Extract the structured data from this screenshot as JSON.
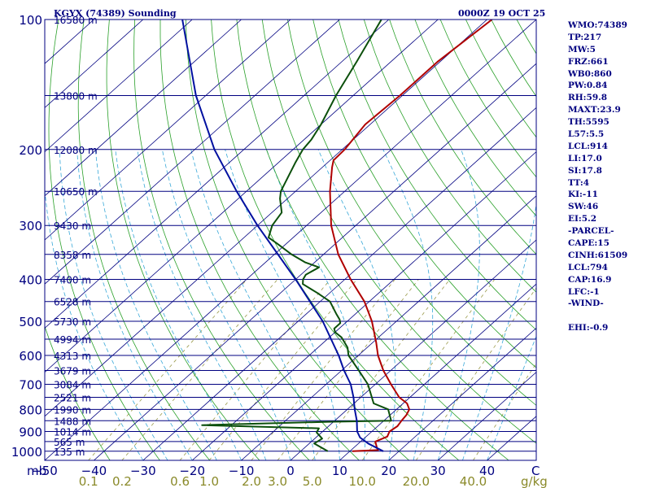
{
  "chart_data": {
    "type": "line",
    "title_left": "KGYX (74389) Sounding",
    "title_right": "0000Z 19 OCT 25",
    "y_axis_unit": "mb",
    "pressure_ticks": [
      100,
      200,
      300,
      400,
      500,
      600,
      700,
      800,
      900,
      1000
    ],
    "pressure_range": [
      100,
      1050
    ],
    "x_axis_unit": "C",
    "temperature_ticks": [
      -50,
      -40,
      -30,
      -20,
      -10,
      0,
      10,
      20,
      30,
      40
    ],
    "temperature_range_at_surface": [
      -50,
      50
    ],
    "mixing_ratio_unit": "g/kg",
    "mixing_ratio_labels": [
      "0.1",
      "0.2",
      "0.6",
      "1.0",
      "2.0",
      "3.0",
      "5.0",
      "10.0",
      "20.0",
      "40.0"
    ],
    "mixing_ratio_values": [
      0.1,
      0.2,
      0.6,
      1.0,
      2.0,
      3.0,
      5.0,
      10.0,
      20.0,
      40.0
    ],
    "height_levels": [
      {
        "p": 100,
        "label": "16580 m"
      },
      {
        "p": 150,
        "label": "13800 m"
      },
      {
        "p": 200,
        "label": "12080 m"
      },
      {
        "p": 250,
        "label": "10650 m"
      },
      {
        "p": 300,
        "label": "9430 m"
      },
      {
        "p": 350,
        "label": "8358 m"
      },
      {
        "p": 400,
        "label": "7400 m"
      },
      {
        "p": 450,
        "label": "6528 m"
      },
      {
        "p": 500,
        "label": "5730 m"
      },
      {
        "p": 550,
        "label": "4994 m"
      },
      {
        "p": 600,
        "label": "4313 m"
      },
      {
        "p": 650,
        "label": "3679 m"
      },
      {
        "p": 700,
        "label": "3084 m"
      },
      {
        "p": 750,
        "label": "2521 m"
      },
      {
        "p": 800,
        "label": "1990 m"
      },
      {
        "p": 850,
        "label": "1488 m"
      },
      {
        "p": 900,
        "label": "1014 m"
      },
      {
        "p": 950,
        "label": "565 m"
      },
      {
        "p": 1000,
        "label": "135 m"
      }
    ],
    "series": [
      {
        "name": "Temperature",
        "color": "#b00000",
        "points": [
          {
            "p": 1000,
            "t": 10.5
          },
          {
            "p": 994,
            "t": 15.5
          },
          {
            "p": 985,
            "t": 14.9
          },
          {
            "p": 950,
            "t": 13.0
          },
          {
            "p": 925,
            "t": 14.3
          },
          {
            "p": 900,
            "t": 13.6
          },
          {
            "p": 875,
            "t": 14.0
          },
          {
            "p": 850,
            "t": 13.6
          },
          {
            "p": 825,
            "t": 13.3
          },
          {
            "p": 800,
            "t": 12.6
          },
          {
            "p": 775,
            "t": 10.8
          },
          {
            "p": 750,
            "t": 7.8
          },
          {
            "p": 700,
            "t": 3.2
          },
          {
            "p": 650,
            "t": -1.5
          },
          {
            "p": 600,
            "t": -6.0
          },
          {
            "p": 560,
            "t": -9.3
          },
          {
            "p": 500,
            "t": -15.0
          },
          {
            "p": 450,
            "t": -21.0
          },
          {
            "p": 400,
            "t": -28.8
          },
          {
            "p": 350,
            "t": -37.0
          },
          {
            "p": 300,
            "t": -45.0
          },
          {
            "p": 250,
            "t": -53.0
          },
          {
            "p": 220,
            "t": -58.0
          },
          {
            "p": 212,
            "t": -59.3
          },
          {
            "p": 200,
            "t": -59.5
          },
          {
            "p": 175,
            "t": -61.0
          },
          {
            "p": 150,
            "t": -60.5
          },
          {
            "p": 125,
            "t": -60.5
          },
          {
            "p": 100,
            "t": -59.0
          }
        ]
      },
      {
        "name": "Dewpoint",
        "color": "#0b4f0b",
        "points": [
          {
            "p": 1000,
            "t": 5.5
          },
          {
            "p": 960,
            "t": 1.0
          },
          {
            "p": 935,
            "t": 1.5
          },
          {
            "p": 905,
            "t": -1.0
          },
          {
            "p": 885,
            "t": -1.5
          },
          {
            "p": 870,
            "t": -26.0
          },
          {
            "p": 855,
            "t": -1.0
          },
          {
            "p": 850,
            "t": 11.5
          },
          {
            "p": 800,
            "t": 8.3
          },
          {
            "p": 775,
            "t": 4.0
          },
          {
            "p": 700,
            "t": -1.5
          },
          {
            "p": 650,
            "t": -6.5
          },
          {
            "p": 600,
            "t": -12.0
          },
          {
            "p": 575,
            "t": -14.0
          },
          {
            "p": 545,
            "t": -17.5
          },
          {
            "p": 530,
            "t": -20.0
          },
          {
            "p": 520,
            "t": -21.0
          },
          {
            "p": 505,
            "t": -21.0
          },
          {
            "p": 495,
            "t": -22.0
          },
          {
            "p": 480,
            "t": -24.0
          },
          {
            "p": 450,
            "t": -28.0
          },
          {
            "p": 430,
            "t": -32.5
          },
          {
            "p": 410,
            "t": -37.5
          },
          {
            "p": 400,
            "t": -38.5
          },
          {
            "p": 390,
            "t": -39.0
          },
          {
            "p": 375,
            "t": -38.0
          },
          {
            "p": 365,
            "t": -42.0
          },
          {
            "p": 350,
            "t": -46.5
          },
          {
            "p": 330,
            "t": -52.0
          },
          {
            "p": 320,
            "t": -55.0
          },
          {
            "p": 300,
            "t": -57.0
          },
          {
            "p": 280,
            "t": -58.0
          },
          {
            "p": 260,
            "t": -61.5
          },
          {
            "p": 250,
            "t": -63.0
          },
          {
            "p": 215,
            "t": -66.5
          },
          {
            "p": 205,
            "t": -67.5
          },
          {
            "p": 200,
            "t": -68.0
          },
          {
            "p": 190,
            "t": -68.5
          },
          {
            "p": 175,
            "t": -70.0
          },
          {
            "p": 150,
            "t": -73.5
          },
          {
            "p": 125,
            "t": -77.0
          },
          {
            "p": 100,
            "t": -81.5
          }
        ]
      },
      {
        "name": "Parcel path",
        "color": "#0010a0",
        "points": [
          {
            "p": 1000,
            "t": 16.8
          },
          {
            "p": 960,
            "t": 12.0
          },
          {
            "p": 930,
            "t": 9.0
          },
          {
            "p": 900,
            "t": 7.0
          },
          {
            "p": 850,
            "t": 4.5
          },
          {
            "p": 800,
            "t": 1.5
          },
          {
            "p": 750,
            "t": -1.5
          },
          {
            "p": 700,
            "t": -5.0
          },
          {
            "p": 650,
            "t": -9.5
          },
          {
            "p": 600,
            "t": -14.0
          },
          {
            "p": 500,
            "t": -25.0
          },
          {
            "p": 400,
            "t": -40.0
          },
          {
            "p": 300,
            "t": -60.0
          },
          {
            "p": 250,
            "t": -72.0
          },
          {
            "p": 200,
            "t": -86.0
          },
          {
            "p": 150,
            "t": -102.0
          },
          {
            "p": 100,
            "t": -122.0
          }
        ]
      }
    ],
    "indices": [
      "WMO:74389",
      "TP:217",
      "MW:5",
      "FRZ:661",
      "WB0:860",
      "PW:0.84",
      "RH:59.8",
      "MAXT:23.9",
      "TH:5595",
      "L57:5.5",
      "LCL:914",
      "LI:17.0",
      "SI:17.8",
      "TT:4",
      "KI:-11",
      "SW:46",
      "EI:5.2",
      "-PARCEL-",
      "CAPE:15",
      "CINH:61509",
      "LCL:794",
      "CAP:16.9",
      "LFC:-1",
      "-WIND-",
      "",
      "EHI:-0.9"
    ],
    "grid": true,
    "legend": "none"
  },
  "colors": {
    "frame": "#000080",
    "isobar": "#000080",
    "isotherm": "#000080",
    "dry_adiabat": "#2aa02a",
    "moist_adiabat": "#38a8d8",
    "mixing_ratio": "#9a9a4a"
  }
}
